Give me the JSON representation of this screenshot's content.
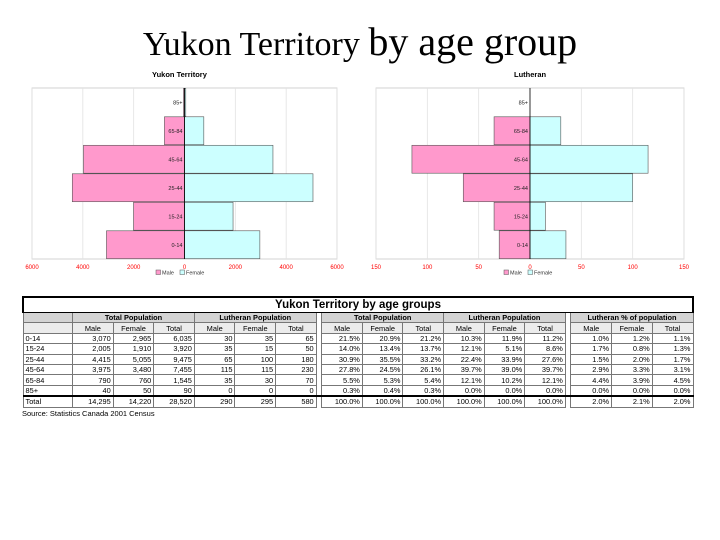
{
  "slide": {
    "title_part1": "Yukon Territory ",
    "title_part2": "by age group"
  },
  "chart_data": [
    {
      "type": "bar",
      "orientation": "horizontal-pyramid",
      "title": "Yukon Territory",
      "categories": [
        "85+",
        "65-84",
        "45-64",
        "25-44",
        "15-24",
        "0-14"
      ],
      "series": [
        {
          "name": "Male",
          "values": [
            40,
            790,
            3975,
            4415,
            2005,
            3070
          ],
          "color": "#ff99cc"
        },
        {
          "name": "Female",
          "values": [
            50,
            760,
            3480,
            5055,
            1910,
            2965
          ],
          "color": "#ccffff"
        }
      ],
      "xlim": [
        -6000,
        6000
      ],
      "xticks": [
        -6000,
        -4000,
        -2000,
        0,
        2000,
        4000,
        6000
      ],
      "xtick_labels": [
        "6000",
        "4000",
        "2000",
        "0",
        "2000",
        "4000",
        "6000"
      ],
      "grid": true,
      "legend": "bottom-left"
    },
    {
      "type": "bar",
      "orientation": "horizontal-pyramid",
      "title": "Lutheran",
      "categories": [
        "85+",
        "65-84",
        "45-64",
        "25-44",
        "15-24",
        "0-14"
      ],
      "series": [
        {
          "name": "Male",
          "values": [
            0,
            35,
            115,
            65,
            35,
            30
          ],
          "color": "#ff99cc"
        },
        {
          "name": "Female",
          "values": [
            0,
            30,
            115,
            100,
            15,
            35
          ],
          "color": "#ccffff"
        }
      ],
      "xlim": [
        -150,
        150
      ],
      "xticks": [
        -150,
        -100,
        -50,
        0,
        50,
        100,
        150
      ],
      "xtick_labels": [
        "150",
        "100",
        "50",
        "0",
        "50",
        "100",
        "150"
      ],
      "grid": true,
      "legend": "bottom-left"
    }
  ],
  "table": {
    "caption": "Yukon Territory by age groups",
    "groups": [
      "Total Population",
      "Lutheran Population",
      "Total Population",
      "Lutheran Population",
      "Lutheran % of population"
    ],
    "columns": [
      "Male",
      "Female",
      "Total"
    ],
    "rows": [
      {
        "label": "0-14",
        "cells": [
          "3,070",
          "2,965",
          "6,035",
          "30",
          "35",
          "65",
          "21.5%",
          "20.9%",
          "21.2%",
          "10.3%",
          "11.9%",
          "11.2%",
          "1.0%",
          "1.2%",
          "1.1%"
        ]
      },
      {
        "label": "15-24",
        "cells": [
          "2,005",
          "1,910",
          "3,920",
          "35",
          "15",
          "50",
          "14.0%",
          "13.4%",
          "13.7%",
          "12.1%",
          "5.1%",
          "8.6%",
          "1.7%",
          "0.8%",
          "1.3%"
        ]
      },
      {
        "label": "25-44",
        "cells": [
          "4,415",
          "5,055",
          "9,475",
          "65",
          "100",
          "180",
          "30.9%",
          "35.5%",
          "33.2%",
          "22.4%",
          "33.9%",
          "27.6%",
          "1.5%",
          "2.0%",
          "1.7%"
        ]
      },
      {
        "label": "45-64",
        "cells": [
          "3,975",
          "3,480",
          "7,455",
          "115",
          "115",
          "230",
          "27.8%",
          "24.5%",
          "26.1%",
          "39.7%",
          "39.0%",
          "39.7%",
          "2.9%",
          "3.3%",
          "3.1%"
        ]
      },
      {
        "label": "65-84",
        "cells": [
          "790",
          "760",
          "1,545",
          "35",
          "30",
          "70",
          "5.5%",
          "5.3%",
          "5.4%",
          "12.1%",
          "10.2%",
          "12.1%",
          "4.4%",
          "3.9%",
          "4.5%"
        ]
      },
      {
        "label": "85+",
        "cells": [
          "40",
          "50",
          "90",
          "0",
          "0",
          "0",
          "0.3%",
          "0.4%",
          "0.3%",
          "0.0%",
          "0.0%",
          "0.0%",
          "0.0%",
          "0.0%",
          "0.0%"
        ]
      },
      {
        "label": "Total",
        "cells": [
          "14,295",
          "14,220",
          "28,520",
          "290",
          "295",
          "580",
          "100.0%",
          "100.0%",
          "100.0%",
          "100.0%",
          "100.0%",
          "100.0%",
          "2.0%",
          "2.1%",
          "2.0%"
        ]
      }
    ],
    "source": "Source: Statistics Canada 2001 Census"
  }
}
